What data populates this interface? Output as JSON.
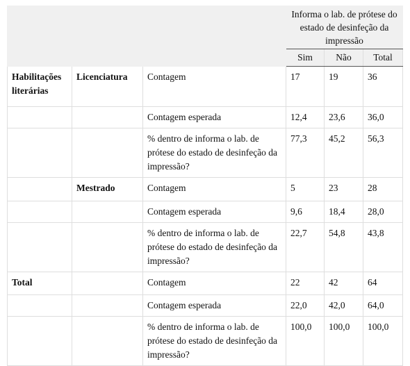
{
  "header": {
    "group_title": "Informa o lab. de prótese do estado de desinfeção da impressão",
    "columns": [
      "Sim",
      "Não",
      "Total"
    ]
  },
  "rows": [
    {
      "group": "Habilitações literárias",
      "subgroup": "Licenciatura",
      "stat": "Contagem",
      "cells": [
        "17",
        "19",
        "36"
      ]
    },
    {
      "stat": "Contagem esperada",
      "cells": [
        "12,4",
        "23,6",
        "36,0"
      ]
    },
    {
      "stat": "% dentro de informa o lab. de prótese do estado de desinfeção da impressão?",
      "cells": [
        "77,3",
        "45,2",
        "56,3"
      ]
    },
    {
      "subgroup": "Mestrado",
      "stat": "Contagem",
      "cells": [
        "5",
        "23",
        "28"
      ]
    },
    {
      "stat": "Contagem esperada",
      "cells": [
        "9,6",
        "18,4",
        "28,0"
      ]
    },
    {
      "stat": "% dentro de informa o lab. de prótese do estado de desinfeção da impressão?",
      "cells": [
        "22,7",
        "54,8",
        "43,8"
      ]
    },
    {
      "group": "Total",
      "stat": "Contagem",
      "cells": [
        "22",
        "42",
        "64"
      ]
    },
    {
      "stat": "Contagem esperada",
      "cells": [
        "22,0",
        "42,0",
        "64,0"
      ]
    },
    {
      "stat": "% dentro de informa o lab. de prótese do estado de desinfeção da impressão?",
      "cells": [
        "100,0",
        "100,0",
        "100,0"
      ]
    }
  ]
}
